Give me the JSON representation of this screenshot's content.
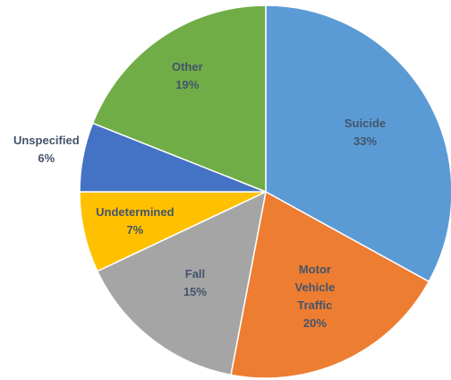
{
  "chart_data": {
    "type": "pie",
    "categories": [
      "Suicide",
      "Motor Vehicle Traffic",
      "Fall",
      "Undetermined",
      "Unspecified",
      "Other"
    ],
    "values": [
      33,
      20,
      15,
      7,
      6,
      19
    ],
    "value_labels": [
      "33%",
      "20%",
      "15%",
      "7%",
      "6%",
      "19%"
    ],
    "colors": [
      "#5b9bd5",
      "#ed7d31",
      "#a5a5a5",
      "#ffc000",
      "#4472c4",
      "#70ad47"
    ]
  }
}
